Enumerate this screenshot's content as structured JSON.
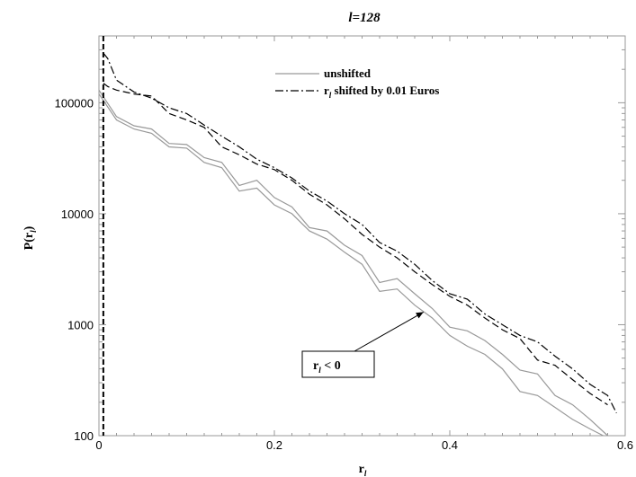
{
  "chart_data": {
    "type": "line",
    "title": "l=128",
    "xlabel": "r",
    "xlabel_sub": "l",
    "ylabel": "P(r",
    "ylabel_sub": "l",
    "ylabel_suffix": ")",
    "xlim": [
      0,
      0.6
    ],
    "ylim": [
      100,
      400000
    ],
    "yscale": "log",
    "grid": false,
    "legend_position": "top-center",
    "x_ticks": [
      "0",
      "0.2",
      "0.4",
      "0.6"
    ],
    "y_ticks": [
      "100",
      "1000",
      "10000",
      "100000"
    ],
    "x_tick_values": [
      0,
      0.2,
      0.4,
      0.6
    ],
    "y_tick_values": [
      100,
      1000,
      10000,
      100000
    ],
    "vertical_line_x": 0.005,
    "legend": [
      {
        "label": "unshifted",
        "style": "solid",
        "color": "#999999"
      },
      {
        "label_prefix": "r",
        "label_sub": "l",
        "label_rest": " shifted by 0.01 Euros",
        "style": "dashdot",
        "color": "#000000"
      }
    ],
    "annotation": {
      "text_prefix": "r",
      "text_sub": "l",
      "text_rest": " < 0",
      "points_to": {
        "x": 0.37,
        "y": 1300
      }
    },
    "series": [
      {
        "name": "unshifted",
        "style": "solid",
        "color": "#999999",
        "x": [
          0.0,
          0.02,
          0.04,
          0.06,
          0.08,
          0.1,
          0.12,
          0.14,
          0.16,
          0.18,
          0.2,
          0.22,
          0.24,
          0.26,
          0.28,
          0.3,
          0.32,
          0.34,
          0.36,
          0.38,
          0.4,
          0.42,
          0.44,
          0.46,
          0.48,
          0.5,
          0.52,
          0.54,
          0.56,
          0.58
        ],
        "y": [
          130000,
          75000,
          62000,
          58000,
          43000,
          42000,
          32000,
          29000,
          18000,
          20000,
          14000,
          11500,
          7500,
          7000,
          5200,
          4200,
          2400,
          2600,
          1900,
          1400,
          950,
          880,
          720,
          540,
          390,
          360,
          230,
          190,
          140,
          100
        ]
      },
      {
        "name": "unshifted",
        "style": "solid",
        "color": "#999999",
        "x": [
          0.0,
          0.02,
          0.04,
          0.06,
          0.08,
          0.1,
          0.12,
          0.14,
          0.16,
          0.18,
          0.2,
          0.22,
          0.24,
          0.26,
          0.28,
          0.3,
          0.32,
          0.34,
          0.36,
          0.38,
          0.4,
          0.42,
          0.44,
          0.46,
          0.48,
          0.5,
          0.52,
          0.54,
          0.56,
          0.575
        ],
        "y": [
          120000,
          70000,
          58000,
          53000,
          40000,
          39000,
          29000,
          26000,
          16000,
          17000,
          12000,
          10000,
          7000,
          5900,
          4500,
          3500,
          2000,
          2100,
          1500,
          1150,
          800,
          640,
          540,
          400,
          250,
          230,
          180,
          140,
          115,
          100
        ]
      },
      {
        "name": "",
        "style": "dashdot",
        "color": "#000000",
        "x": [
          0.005,
          0.01,
          0.02,
          0.04,
          0.06,
          0.08,
          0.1,
          0.12,
          0.14,
          0.16,
          0.18,
          0.2,
          0.22,
          0.24,
          0.26,
          0.28,
          0.3,
          0.32,
          0.34,
          0.36,
          0.38,
          0.4,
          0.42,
          0.44,
          0.46,
          0.48,
          0.5,
          0.52,
          0.54,
          0.56,
          0.58,
          0.59
        ],
        "y": [
          280000,
          250000,
          160000,
          125000,
          110000,
          90000,
          80000,
          63000,
          50000,
          40000,
          31000,
          26000,
          21000,
          16000,
          13000,
          10000,
          8000,
          5500,
          4600,
          3500,
          2500,
          1900,
          1700,
          1250,
          1000,
          800,
          700,
          520,
          400,
          290,
          230,
          160
        ]
      },
      {
        "name": "",
        "style": "dashed",
        "color": "#000000",
        "x": [
          0.005,
          0.01,
          0.02,
          0.04,
          0.06,
          0.08,
          0.1,
          0.12,
          0.14,
          0.16,
          0.18,
          0.2,
          0.22,
          0.24,
          0.26,
          0.28,
          0.3,
          0.32,
          0.34,
          0.36,
          0.38,
          0.4,
          0.42,
          0.44,
          0.46,
          0.48,
          0.5,
          0.52,
          0.54,
          0.56,
          0.58
        ],
        "y": [
          150000,
          140000,
          130000,
          120000,
          115000,
          80000,
          70000,
          60000,
          40000,
          34000,
          28000,
          25000,
          20000,
          15000,
          12000,
          9000,
          6500,
          5000,
          4000,
          3000,
          2300,
          1800,
          1500,
          1150,
          900,
          750,
          480,
          430,
          320,
          240,
          190
        ]
      }
    ]
  }
}
